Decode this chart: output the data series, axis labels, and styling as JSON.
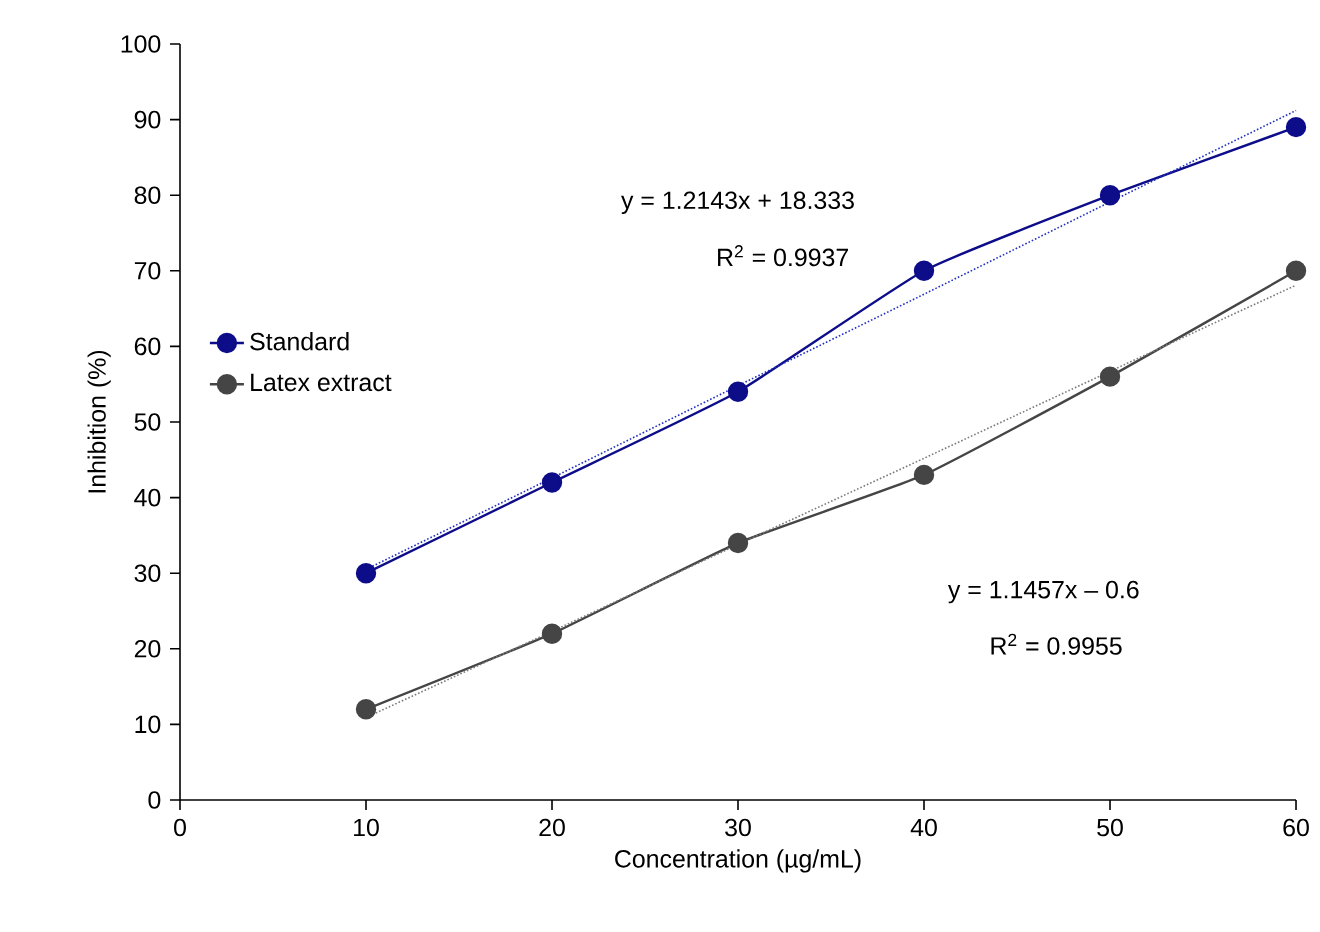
{
  "chart_data": {
    "type": "line",
    "xlabel": "Concentration (µg/mL)",
    "ylabel": "Inhibition (%)",
    "x": [
      10,
      20,
      30,
      40,
      50,
      60
    ],
    "series": [
      {
        "name": "Standard",
        "color": "#0d0d8a",
        "values": [
          30,
          42,
          54,
          70,
          80,
          89
        ],
        "marker": "circle",
        "line_style": "solid"
      },
      {
        "name": "Latex extract",
        "color": "#454545",
        "values": [
          12,
          22,
          34,
          43,
          56,
          70
        ],
        "marker": "circle",
        "line_style": "solid"
      },
      {
        "type": "line",
        "color": "#1f2fbf",
        "values": [
          30.5,
          42.6,
          54.8,
          66.9,
          79.1,
          91.2
        ],
        "marker": "none",
        "line_style": "dotted"
      },
      {
        "type": "line",
        "color": "#7a7a7a",
        "values": [
          10.9,
          22.3,
          33.8,
          45.2,
          56.7,
          68.1
        ],
        "marker": "none",
        "line_style": "dotted"
      }
    ],
    "annotations": [
      "y = 1.2143x + 18.333",
      "R$^{2}$ = 0.9937",
      "y = 1.1457x – 0.6",
      "R$^{2}$ = 0.9955"
    ],
    "xlim": [
      0,
      60
    ],
    "xticks": [
      0,
      10,
      20,
      30,
      40,
      50,
      60
    ],
    "ylim": [
      0,
      100
    ],
    "yticks": [
      0,
      10,
      20,
      30,
      40,
      50,
      60,
      70,
      80,
      90,
      100
    ],
    "grid": false,
    "legend": "left"
  }
}
